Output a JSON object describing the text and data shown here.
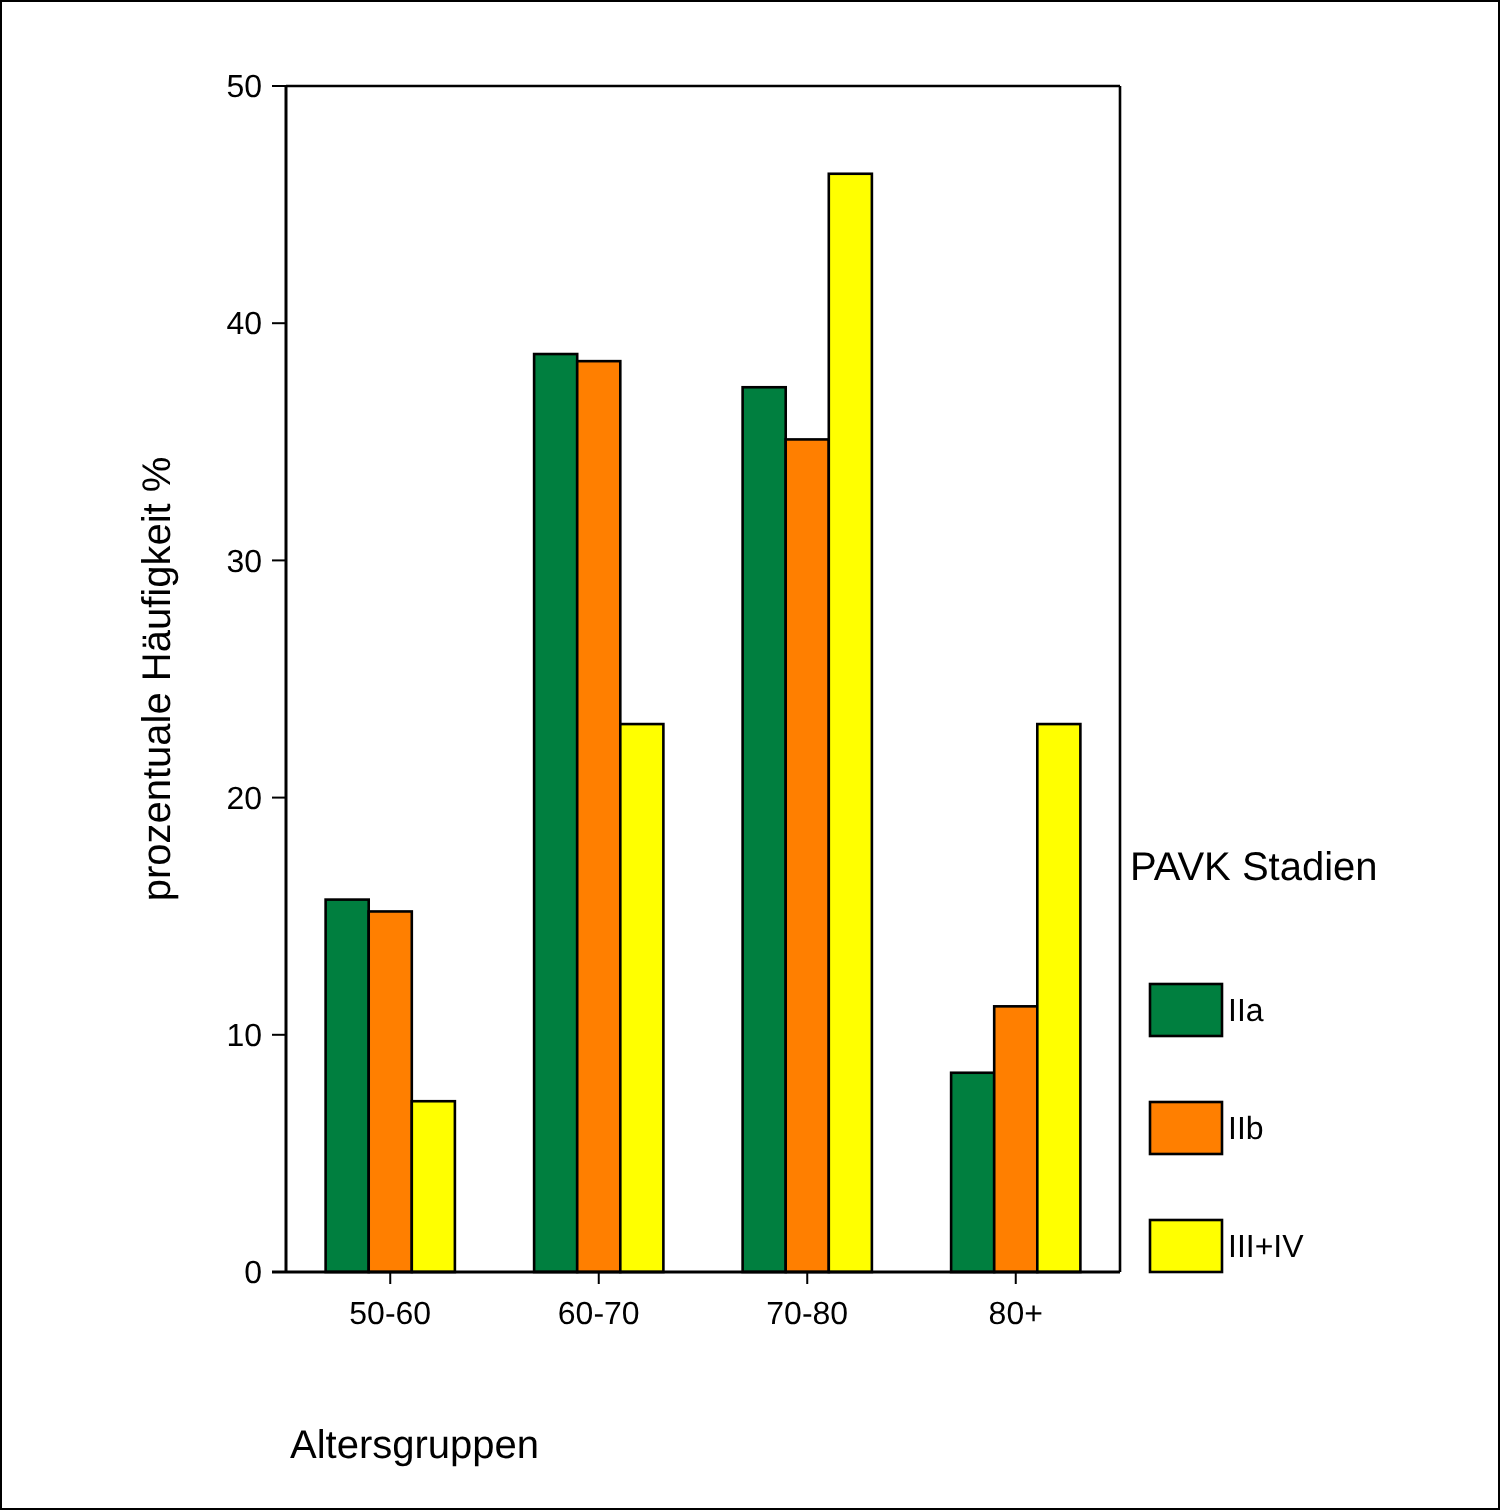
{
  "chart_data": {
    "type": "bar",
    "xlabel": "Altersgruppen",
    "ylabel": "prozentuale Häufigkeit %",
    "legend_title": "PAVK Stadien",
    "categories": [
      "50-60",
      "60-70",
      "70-80",
      "80+"
    ],
    "series": [
      {
        "name": "IIa",
        "color": "#007f3f",
        "values": [
          15.7,
          38.7,
          37.3,
          8.4
        ]
      },
      {
        "name": "IIb",
        "color": "#ff7f00",
        "values": [
          15.2,
          38.4,
          35.1,
          11.2
        ]
      },
      {
        "name": "III+IV",
        "color": "#ffff00",
        "values": [
          7.2,
          23.1,
          46.3,
          23.1
        ]
      }
    ],
    "ylim": [
      0,
      50
    ],
    "yticks": [
      0,
      10,
      20,
      30,
      40,
      50
    ],
    "grid": false,
    "legend": "right"
  }
}
